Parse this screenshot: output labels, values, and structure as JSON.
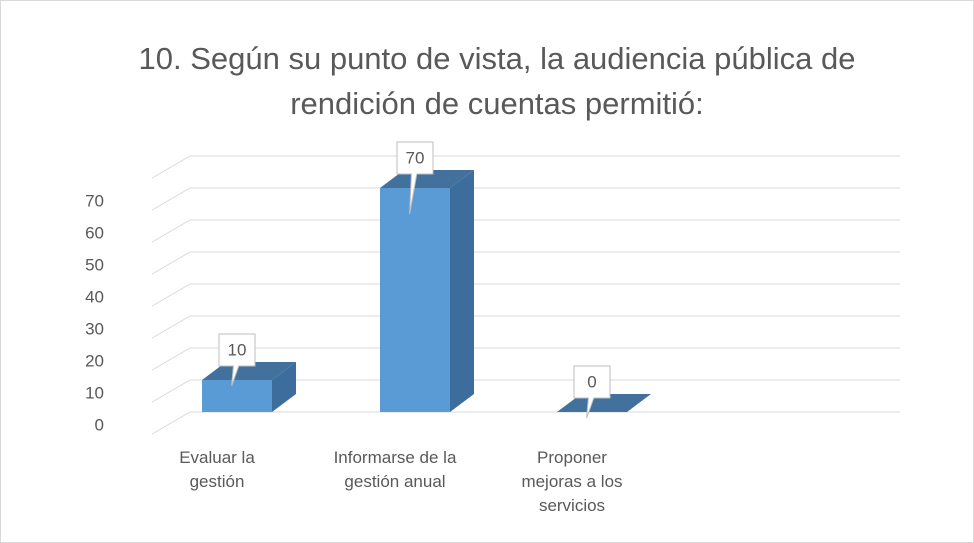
{
  "chart_data": {
    "type": "bar3d",
    "title": "10. Según su punto de vista, la audiencia pública de rendición de cuentas permitió:",
    "categories": [
      "Evaluar la gestión",
      "Informarse de la gestión anual",
      "Proponer mejoras a los servicios"
    ],
    "values": [
      10,
      70,
      0
    ],
    "color": "#5b9bd5",
    "ylim": [
      0,
      80
    ],
    "yticks": [
      0,
      10,
      20,
      30,
      40,
      50,
      60,
      70
    ],
    "grid": true
  }
}
